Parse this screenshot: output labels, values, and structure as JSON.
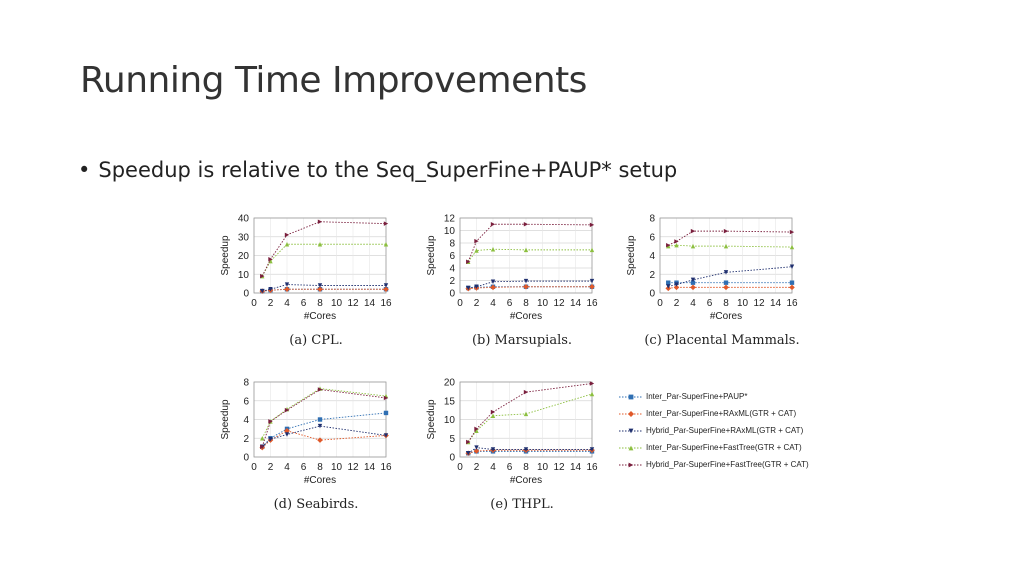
{
  "slide": {
    "title": "Running Time Improvements",
    "bullet_marker": "•",
    "bullet_text": "Speedup is relative to the Seq_SuperFine+PAUP*  setup"
  },
  "series_styles": [
    {
      "name": "Inter_Par-SuperFine+PAUP*",
      "color": "#2f6fb3",
      "marker": "square"
    },
    {
      "name": "Inter_Par-SuperFine+RAxML(GTR + CAT)",
      "color": "#e0592a",
      "marker": "diamond"
    },
    {
      "name": "Hybrid_Par-SuperFine+RAxML(GTR + CAT)",
      "color": "#1f2f6e",
      "marker": "triangle-down"
    },
    {
      "name": "Inter_Par-SuperFine+FastTree(GTR + CAT)",
      "color": "#8cbf3f",
      "marker": "triangle-up"
    },
    {
      "name": "Hybrid_Par-SuperFine+FastTree(GTR + CAT)",
      "color": "#7a1f3d",
      "marker": "triangle-right"
    }
  ],
  "chart_data": [
    {
      "type": "line",
      "caption": "(a) CPL.",
      "xlabel": "#Cores",
      "ylabel": "Speedup",
      "xlim": [
        0,
        16
      ],
      "xticks": [
        0,
        2,
        4,
        6,
        8,
        10,
        12,
        14,
        16
      ],
      "ylim": [
        0,
        40
      ],
      "yticks": [
        0,
        10,
        20,
        30,
        40
      ],
      "grid": true,
      "x": [
        1,
        2,
        4,
        8,
        16
      ],
      "series": [
        {
          "values": [
            1,
            1.5,
            2,
            2,
            2
          ]
        },
        {
          "values": [
            1,
            1.5,
            2,
            2,
            2
          ]
        },
        {
          "values": [
            1,
            2,
            4.5,
            4,
            4
          ]
        },
        {
          "values": [
            9,
            17,
            26,
            26,
            26
          ]
        },
        {
          "values": [
            9,
            18,
            31,
            38,
            37
          ]
        }
      ]
    },
    {
      "type": "line",
      "caption": "(b) Marsupials.",
      "xlabel": "#Cores",
      "ylabel": "Speedup",
      "xlim": [
        0,
        16
      ],
      "xticks": [
        0,
        2,
        4,
        6,
        8,
        10,
        12,
        14,
        16
      ],
      "ylim": [
        0,
        12
      ],
      "yticks": [
        0,
        2,
        4,
        6,
        8,
        10,
        12
      ],
      "grid": true,
      "x": [
        1,
        2,
        4,
        8,
        16
      ],
      "series": [
        {
          "values": [
            0.8,
            0.9,
            1,
            1,
            1
          ]
        },
        {
          "values": [
            0.7,
            0.8,
            0.9,
            1,
            1
          ]
        },
        {
          "values": [
            0.8,
            1,
            1.8,
            1.9,
            1.9
          ]
        },
        {
          "values": [
            5,
            6.8,
            7,
            6.9,
            6.9
          ]
        },
        {
          "values": [
            5,
            8.3,
            11,
            11,
            10.9
          ]
        }
      ]
    },
    {
      "type": "line",
      "caption": "(c) Placental Mammals.",
      "xlabel": "#Cores",
      "ylabel": "Speedup",
      "xlim": [
        0,
        16
      ],
      "xticks": [
        0,
        2,
        4,
        6,
        8,
        10,
        12,
        14,
        16
      ],
      "ylim": [
        0,
        8
      ],
      "yticks": [
        0,
        2,
        4,
        6,
        8
      ],
      "grid": true,
      "x": [
        1,
        2,
        4,
        8,
        16
      ],
      "series": [
        {
          "values": [
            1.1,
            1.1,
            1.1,
            1.1,
            1.1
          ]
        },
        {
          "values": [
            0.5,
            0.6,
            0.6,
            0.6,
            0.6
          ]
        },
        {
          "values": [
            0.7,
            0.9,
            1.4,
            2.2,
            2.8
          ]
        },
        {
          "values": [
            5,
            5.1,
            5,
            5,
            4.9
          ]
        },
        {
          "values": [
            5.1,
            5.5,
            6.6,
            6.6,
            6.5
          ]
        }
      ]
    },
    {
      "type": "line",
      "caption": "(d) Seabirds.",
      "xlabel": "#Cores",
      "ylabel": "Speedup",
      "xlim": [
        0,
        16
      ],
      "xticks": [
        0,
        2,
        4,
        6,
        8,
        10,
        12,
        14,
        16
      ],
      "ylim": [
        0,
        8
      ],
      "yticks": [
        0,
        2,
        4,
        6,
        8
      ],
      "grid": true,
      "x": [
        1,
        2,
        4,
        8,
        16
      ],
      "series": [
        {
          "values": [
            1.1,
            2,
            3,
            4,
            4.7
          ]
        },
        {
          "values": [
            1,
            1.8,
            2.8,
            1.8,
            2.3
          ]
        },
        {
          "values": [
            1.1,
            1.9,
            2.4,
            3.3,
            2.3
          ]
        },
        {
          "values": [
            2,
            3.8,
            5.1,
            7.3,
            6.5
          ]
        },
        {
          "values": [
            1.1,
            3.8,
            5,
            7.2,
            6.3
          ]
        }
      ]
    },
    {
      "type": "line",
      "caption": "(e) THPL.",
      "xlabel": "#Cores",
      "ylabel": "Speedup",
      "xlim": [
        0,
        16
      ],
      "xticks": [
        0,
        2,
        4,
        6,
        8,
        10,
        12,
        14,
        16
      ],
      "ylim": [
        0,
        20
      ],
      "yticks": [
        0,
        5,
        10,
        15,
        20
      ],
      "grid": true,
      "x": [
        1,
        2,
        4,
        8,
        16
      ],
      "series": [
        {
          "values": [
            1,
            1.5,
            1.5,
            1.5,
            1.5
          ]
        },
        {
          "values": [
            1,
            1.6,
            1.8,
            1.8,
            1.8
          ]
        },
        {
          "values": [
            1,
            2.5,
            2,
            2,
            2
          ]
        },
        {
          "values": [
            4,
            7,
            11,
            11.5,
            16.8
          ]
        },
        {
          "values": [
            4,
            7.5,
            12,
            17.3,
            19.6
          ]
        }
      ]
    }
  ]
}
